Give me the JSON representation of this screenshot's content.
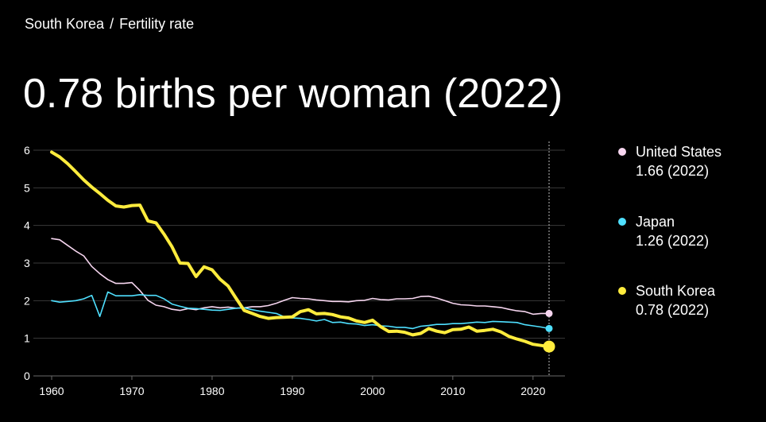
{
  "breadcrumb": {
    "country": "South Korea",
    "separator": "/",
    "metric": "Fertility rate"
  },
  "headline": "0.78 births per woman (2022)",
  "colors": {
    "background": "#000000",
    "gridline": "#3a3a3a",
    "axis_text": "#ffffff",
    "marker_line": "#bbbbbb"
  },
  "legend": [
    {
      "name": "United States",
      "value": "1.66 (2022)",
      "color": "#f7d6f0"
    },
    {
      "name": "Japan",
      "value": "1.26 (2022)",
      "color": "#4fe0ff"
    },
    {
      "name": "South Korea",
      "value": "0.78 (2022)",
      "color": "#ffec3d"
    }
  ],
  "chart_data": {
    "type": "line",
    "title": "0.78 births per woman (2022)",
    "xlabel": "",
    "ylabel": "",
    "xlim": [
      1959,
      2024
    ],
    "ylim": [
      0,
      6
    ],
    "xticks": [
      1960,
      1970,
      1980,
      1990,
      2000,
      2010,
      2020
    ],
    "yticks": [
      0,
      1,
      2,
      3,
      4,
      5,
      6
    ],
    "grid": true,
    "legend_position": "right",
    "highlight_year": 2022,
    "series": [
      {
        "name": "United States",
        "color": "#f7d6f0",
        "stroke": 1.6,
        "marker_size": 4.5,
        "points": [
          [
            1960,
            3.65
          ],
          [
            1961,
            3.62
          ],
          [
            1962,
            3.47
          ],
          [
            1963,
            3.32
          ],
          [
            1964,
            3.19
          ],
          [
            1965,
            2.91
          ],
          [
            1966,
            2.72
          ],
          [
            1967,
            2.56
          ],
          [
            1968,
            2.46
          ],
          [
            1969,
            2.46
          ],
          [
            1970,
            2.48
          ],
          [
            1971,
            2.27
          ],
          [
            1972,
            2.01
          ],
          [
            1973,
            1.88
          ],
          [
            1974,
            1.84
          ],
          [
            1975,
            1.77
          ],
          [
            1976,
            1.74
          ],
          [
            1977,
            1.79
          ],
          [
            1978,
            1.76
          ],
          [
            1979,
            1.81
          ],
          [
            1980,
            1.84
          ],
          [
            1981,
            1.81
          ],
          [
            1982,
            1.83
          ],
          [
            1983,
            1.8
          ],
          [
            1984,
            1.81
          ],
          [
            1985,
            1.84
          ],
          [
            1986,
            1.84
          ],
          [
            1987,
            1.87
          ],
          [
            1988,
            1.93
          ],
          [
            1989,
            2.01
          ],
          [
            1990,
            2.08
          ],
          [
            1991,
            2.06
          ],
          [
            1992,
            2.05
          ],
          [
            1993,
            2.02
          ],
          [
            1994,
            2.0
          ],
          [
            1995,
            1.98
          ],
          [
            1996,
            1.98
          ],
          [
            1997,
            1.97
          ],
          [
            1998,
            2.0
          ],
          [
            1999,
            2.01
          ],
          [
            2000,
            2.06
          ],
          [
            2001,
            2.03
          ],
          [
            2002,
            2.02
          ],
          [
            2003,
            2.05
          ],
          [
            2004,
            2.05
          ],
          [
            2005,
            2.06
          ],
          [
            2006,
            2.11
          ],
          [
            2007,
            2.12
          ],
          [
            2008,
            2.07
          ],
          [
            2009,
            2.0
          ],
          [
            2010,
            1.93
          ],
          [
            2011,
            1.89
          ],
          [
            2012,
            1.88
          ],
          [
            2013,
            1.86
          ],
          [
            2014,
            1.86
          ],
          [
            2015,
            1.84
          ],
          [
            2016,
            1.82
          ],
          [
            2017,
            1.77
          ],
          [
            2018,
            1.73
          ],
          [
            2019,
            1.71
          ],
          [
            2020,
            1.64
          ],
          [
            2021,
            1.66
          ],
          [
            2022,
            1.66
          ]
        ]
      },
      {
        "name": "Japan",
        "color": "#4fe0ff",
        "stroke": 1.6,
        "marker_size": 4.5,
        "points": [
          [
            1960,
            2.0
          ],
          [
            1961,
            1.96
          ],
          [
            1962,
            1.98
          ],
          [
            1963,
            2.0
          ],
          [
            1964,
            2.05
          ],
          [
            1965,
            2.14
          ],
          [
            1966,
            1.58
          ],
          [
            1967,
            2.23
          ],
          [
            1968,
            2.13
          ],
          [
            1969,
            2.13
          ],
          [
            1970,
            2.13
          ],
          [
            1971,
            2.16
          ],
          [
            1972,
            2.14
          ],
          [
            1973,
            2.14
          ],
          [
            1974,
            2.05
          ],
          [
            1975,
            1.91
          ],
          [
            1976,
            1.85
          ],
          [
            1977,
            1.8
          ],
          [
            1978,
            1.79
          ],
          [
            1979,
            1.77
          ],
          [
            1980,
            1.75
          ],
          [
            1981,
            1.74
          ],
          [
            1982,
            1.77
          ],
          [
            1983,
            1.8
          ],
          [
            1984,
            1.81
          ],
          [
            1985,
            1.76
          ],
          [
            1986,
            1.72
          ],
          [
            1987,
            1.69
          ],
          [
            1988,
            1.66
          ],
          [
            1989,
            1.57
          ],
          [
            1990,
            1.54
          ],
          [
            1991,
            1.53
          ],
          [
            1992,
            1.5
          ],
          [
            1993,
            1.46
          ],
          [
            1994,
            1.5
          ],
          [
            1995,
            1.42
          ],
          [
            1996,
            1.43
          ],
          [
            1997,
            1.39
          ],
          [
            1998,
            1.38
          ],
          [
            1999,
            1.34
          ],
          [
            2000,
            1.36
          ],
          [
            2001,
            1.33
          ],
          [
            2002,
            1.32
          ],
          [
            2003,
            1.29
          ],
          [
            2004,
            1.29
          ],
          [
            2005,
            1.26
          ],
          [
            2006,
            1.32
          ],
          [
            2007,
            1.34
          ],
          [
            2008,
            1.37
          ],
          [
            2009,
            1.37
          ],
          [
            2010,
            1.39
          ],
          [
            2011,
            1.39
          ],
          [
            2012,
            1.41
          ],
          [
            2013,
            1.43
          ],
          [
            2014,
            1.42
          ],
          [
            2015,
            1.45
          ],
          [
            2016,
            1.44
          ],
          [
            2017,
            1.43
          ],
          [
            2018,
            1.42
          ],
          [
            2019,
            1.36
          ],
          [
            2020,
            1.33
          ],
          [
            2021,
            1.3
          ],
          [
            2022,
            1.26
          ]
        ]
      },
      {
        "name": "South Korea",
        "color": "#ffec3d",
        "stroke": 4,
        "marker_size": 7.5,
        "points": [
          [
            1960,
            5.95
          ],
          [
            1961,
            5.82
          ],
          [
            1962,
            5.64
          ],
          [
            1963,
            5.43
          ],
          [
            1964,
            5.21
          ],
          [
            1965,
            5.02
          ],
          [
            1966,
            4.85
          ],
          [
            1967,
            4.67
          ],
          [
            1968,
            4.52
          ],
          [
            1969,
            4.49
          ],
          [
            1970,
            4.53
          ],
          [
            1971,
            4.54
          ],
          [
            1972,
            4.12
          ],
          [
            1973,
            4.07
          ],
          [
            1974,
            3.77
          ],
          [
            1975,
            3.43
          ],
          [
            1976,
            3.0
          ],
          [
            1977,
            2.99
          ],
          [
            1978,
            2.64
          ],
          [
            1979,
            2.9
          ],
          [
            1980,
            2.82
          ],
          [
            1981,
            2.57
          ],
          [
            1982,
            2.39
          ],
          [
            1983,
            2.06
          ],
          [
            1984,
            1.74
          ],
          [
            1985,
            1.66
          ],
          [
            1986,
            1.58
          ],
          [
            1987,
            1.53
          ],
          [
            1988,
            1.55
          ],
          [
            1989,
            1.56
          ],
          [
            1990,
            1.57
          ],
          [
            1991,
            1.71
          ],
          [
            1992,
            1.76
          ],
          [
            1993,
            1.65
          ],
          [
            1994,
            1.66
          ],
          [
            1995,
            1.63
          ],
          [
            1996,
            1.57
          ],
          [
            1997,
            1.54
          ],
          [
            1998,
            1.46
          ],
          [
            1999,
            1.42
          ],
          [
            2000,
            1.48
          ],
          [
            2001,
            1.31
          ],
          [
            2002,
            1.18
          ],
          [
            2003,
            1.19
          ],
          [
            2004,
            1.16
          ],
          [
            2005,
            1.09
          ],
          [
            2006,
            1.13
          ],
          [
            2007,
            1.26
          ],
          [
            2008,
            1.19
          ],
          [
            2009,
            1.15
          ],
          [
            2010,
            1.23
          ],
          [
            2011,
            1.24
          ],
          [
            2012,
            1.3
          ],
          [
            2013,
            1.19
          ],
          [
            2014,
            1.21
          ],
          [
            2015,
            1.24
          ],
          [
            2016,
            1.17
          ],
          [
            2017,
            1.05
          ],
          [
            2018,
            0.98
          ],
          [
            2019,
            0.92
          ],
          [
            2020,
            0.84
          ],
          [
            2021,
            0.81
          ],
          [
            2022,
            0.78
          ]
        ]
      }
    ]
  }
}
